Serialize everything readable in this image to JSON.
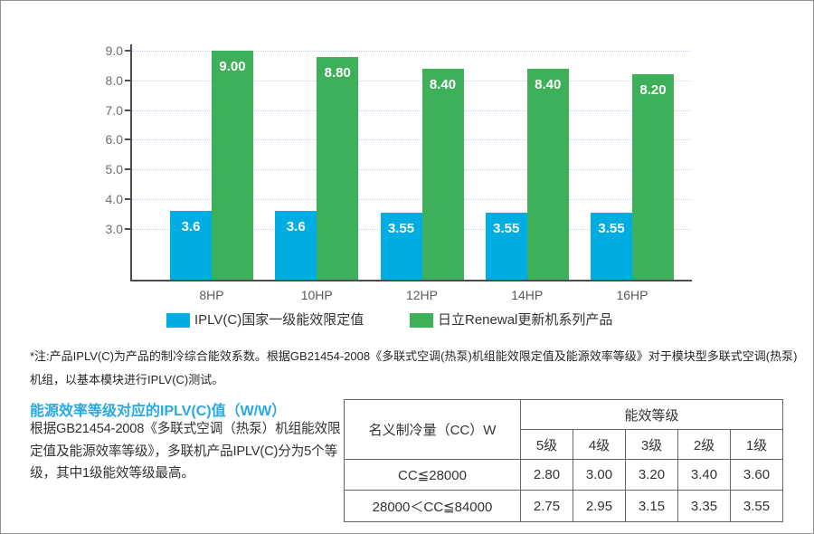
{
  "chart_data": {
    "type": "bar",
    "title": "",
    "categories": [
      "8HP",
      "10HP",
      "12HP",
      "14HP",
      "16HP"
    ],
    "series": [
      {
        "name": "IPLV(C)国家一级能效限定值",
        "color": "#00ade2",
        "values": [
          3.6,
          3.6,
          3.55,
          3.55,
          3.55
        ],
        "labels": [
          "3.6",
          "3.6",
          "3.55",
          "3.55",
          "3.55"
        ]
      },
      {
        "name": "日立Renewal更新机系列产品",
        "color": "#3fb05a",
        "values": [
          9.0,
          8.8,
          8.4,
          8.4,
          8.2
        ],
        "labels": [
          "9.00",
          "8.80",
          "8.40",
          "8.40",
          "8.20"
        ]
      }
    ],
    "y_ticks": [
      "9.0",
      "8.0",
      "7.0",
      "6.0",
      "5.0",
      "4.0",
      "3.0"
    ],
    "ylim": [
      1.3,
      9.0
    ],
    "grid": "dotted horizontal",
    "legend_position": "bottom"
  },
  "footnote": {
    "lines": [
      "*注:产品IPLV(C)为产品的制冷综合能效系数。根据GB21454-2008《多联式空调(热泵)机组能效限定值及能源效率等级》对于模块型多联式空调(热泵)",
      "机组，以基本模块进行IPLV(C)测试。"
    ]
  },
  "section": {
    "title": "能源效率等级对应的IPLV(C)值（W/W）",
    "accent_color": "#29a9e1",
    "body_lines": [
      "根据GB21454-2008《多联式空调（热泵）机组能效限",
      "定值及能源效率等级》，多联机产品IPLV(C)分为5个等",
      "级，其中1级能效等级最高。"
    ]
  },
  "table": {
    "row_header": "名义制冷量（CC）W",
    "group_header": "能效等级",
    "levels": [
      "5级",
      "4级",
      "3级",
      "2级",
      "1级"
    ],
    "rows": [
      {
        "range": "CC≦28000",
        "values": [
          "2.80",
          "3.00",
          "3.20",
          "3.40",
          "3.60"
        ]
      },
      {
        "range": "28000＜CC≦84000",
        "values": [
          "2.75",
          "2.95",
          "3.15",
          "3.35",
          "3.55"
        ]
      }
    ]
  }
}
